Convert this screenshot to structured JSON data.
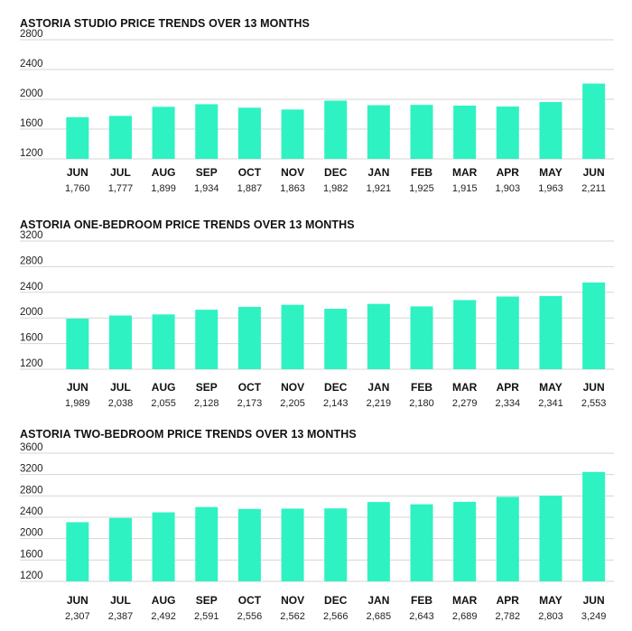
{
  "colors": {
    "bar": "#2ef2c2",
    "grid": "#d6d6d6",
    "text": "#111111"
  },
  "chart_data": [
    {
      "type": "bar",
      "title": "ASTORIA STUDIO PRICE TRENDS OVER 13 MONTHS",
      "categories": [
        "JUN",
        "JUL",
        "AUG",
        "SEP",
        "OCT",
        "NOV",
        "DEC",
        "JAN",
        "FEB",
        "MAR",
        "APR",
        "MAY",
        "JUN"
      ],
      "values": [
        1760,
        1777,
        1899,
        1934,
        1887,
        1863,
        1982,
        1921,
        1925,
        1915,
        1903,
        1963,
        2211
      ],
      "value_labels": [
        "1,760",
        "1,777",
        "1,899",
        "1,934",
        "1,887",
        "1,863",
        "1,982",
        "1,921",
        "1,925",
        "1,915",
        "1,903",
        "1,963",
        "2,211"
      ],
      "yticks": [
        1200,
        1600,
        2000,
        2400,
        2800
      ],
      "ylim": [
        1200,
        2800
      ],
      "grid": true
    },
    {
      "type": "bar",
      "title": "ASTORIA ONE-BEDROOM PRICE TRENDS OVER 13 MONTHS",
      "categories": [
        "JUN",
        "JUL",
        "AUG",
        "SEP",
        "OCT",
        "NOV",
        "DEC",
        "JAN",
        "FEB",
        "MAR",
        "APR",
        "MAY",
        "JUN"
      ],
      "values": [
        1989,
        2038,
        2055,
        2128,
        2173,
        2205,
        2143,
        2219,
        2180,
        2279,
        2334,
        2341,
        2553
      ],
      "value_labels": [
        "1,989",
        "2,038",
        "2,055",
        "2,128",
        "2,173",
        "2,205",
        "2,143",
        "2,219",
        "2,180",
        "2,279",
        "2,334",
        "2,341",
        "2,553"
      ],
      "yticks": [
        1200,
        1600,
        2000,
        2400,
        2800,
        3200
      ],
      "ylim": [
        1200,
        3200
      ],
      "grid": true
    },
    {
      "type": "bar",
      "title": "ASTORIA TWO-BEDROOM PRICE TRENDS OVER 13 MONTHS",
      "categories": [
        "JUN",
        "JUL",
        "AUG",
        "SEP",
        "OCT",
        "NOV",
        "DEC",
        "JAN",
        "FEB",
        "MAR",
        "APR",
        "MAY",
        "JUN"
      ],
      "values": [
        2307,
        2387,
        2492,
        2591,
        2556,
        2562,
        2566,
        2685,
        2643,
        2689,
        2782,
        2803,
        3249
      ],
      "value_labels": [
        "2,307",
        "2,387",
        "2,492",
        "2,591",
        "2,556",
        "2,562",
        "2,566",
        "2,685",
        "2,643",
        "2,689",
        "2,782",
        "2,803",
        "3,249"
      ],
      "yticks": [
        1200,
        1600,
        2000,
        2400,
        2800,
        3200,
        3600
      ],
      "ylim": [
        1200,
        3600
      ],
      "grid": true
    }
  ]
}
